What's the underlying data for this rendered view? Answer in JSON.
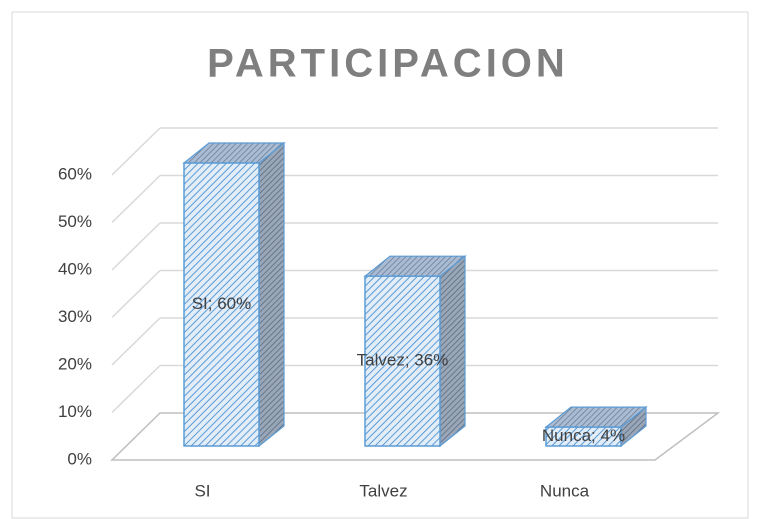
{
  "chart_data": {
    "type": "bar3d",
    "title": "PARTICIPACION",
    "categories": [
      "SI",
      "Talvez",
      "Nunca"
    ],
    "values": [
      60,
      36,
      4
    ],
    "value_labels": [
      "SI; 60%",
      "Talvez; 36%",
      "Nunca; 4%"
    ],
    "color": "#5b9bd5",
    "ylim": [
      0,
      60
    ],
    "yticks": [
      {
        "value": 0,
        "label": "0%"
      },
      {
        "value": 10,
        "label": "10%"
      },
      {
        "value": 20,
        "label": "20%"
      },
      {
        "value": 30,
        "label": "30%"
      },
      {
        "value": 40,
        "label": "40%"
      },
      {
        "value": 50,
        "label": "50%"
      },
      {
        "value": 60,
        "label": "60%"
      }
    ],
    "grid": true
  }
}
